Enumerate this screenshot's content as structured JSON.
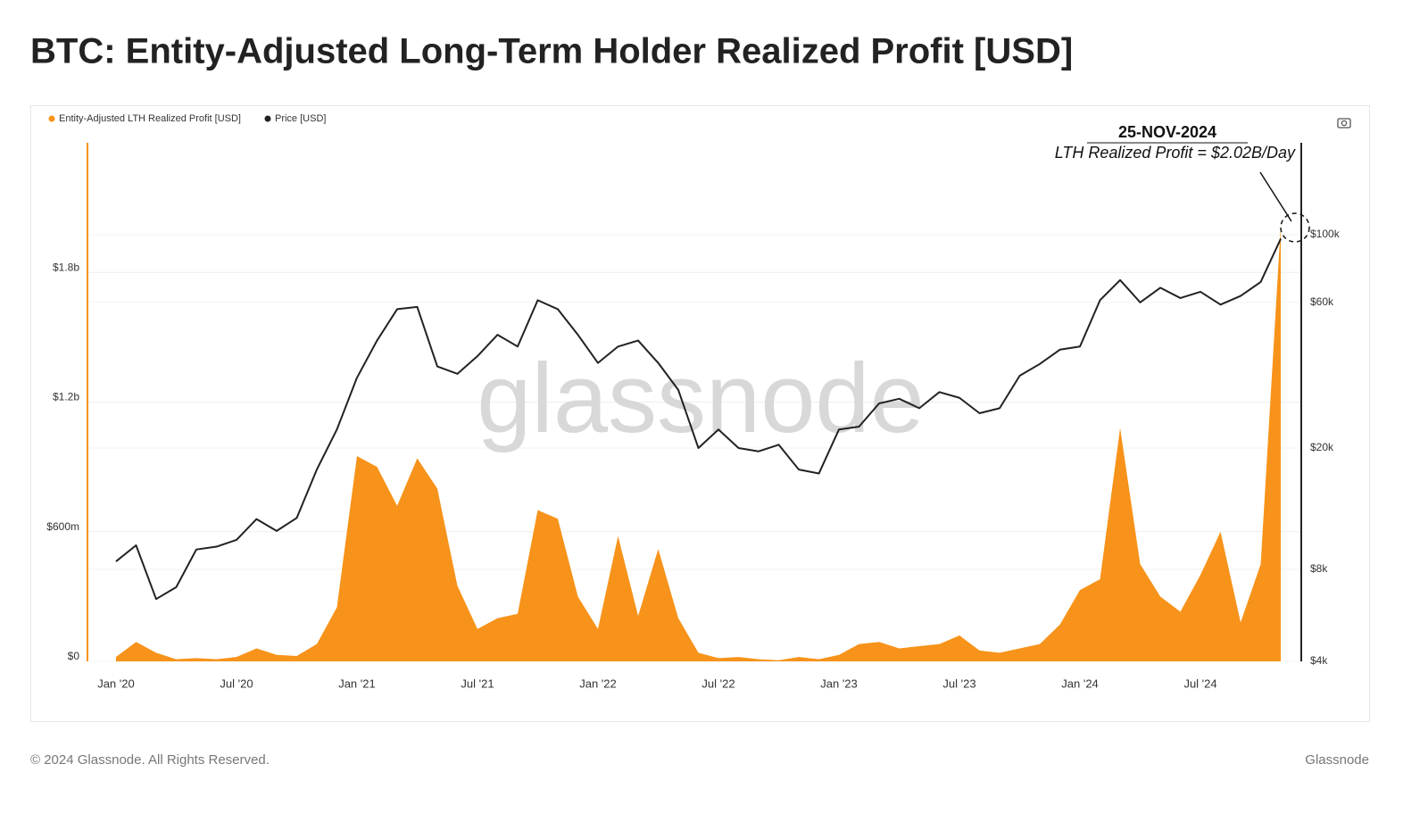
{
  "chart_data": {
    "type": "area-line",
    "title": "BTC: Entity-Adjusted Long-Term Holder Realized Profit [USD]",
    "x": [
      "2020-01",
      "2020-02",
      "2020-03",
      "2020-04",
      "2020-05",
      "2020-06",
      "2020-07",
      "2020-08",
      "2020-09",
      "2020-10",
      "2020-11",
      "2020-12",
      "2021-01",
      "2021-02",
      "2021-03",
      "2021-04",
      "2021-05",
      "2021-06",
      "2021-07",
      "2021-08",
      "2021-09",
      "2021-10",
      "2021-11",
      "2021-12",
      "2022-01",
      "2022-02",
      "2022-03",
      "2022-04",
      "2022-05",
      "2022-06",
      "2022-07",
      "2022-08",
      "2022-09",
      "2022-10",
      "2022-11",
      "2022-12",
      "2023-01",
      "2023-02",
      "2023-03",
      "2023-04",
      "2023-05",
      "2023-06",
      "2023-07",
      "2023-08",
      "2023-09",
      "2023-10",
      "2023-11",
      "2023-12",
      "2024-01",
      "2024-02",
      "2024-03",
      "2024-04",
      "2024-05",
      "2024-06",
      "2024-07",
      "2024-08",
      "2024-09",
      "2024-10",
      "2024-11"
    ],
    "series": [
      {
        "name": "Entity-Adjusted LTH Realized Profit [USD]",
        "color": "#f7931a",
        "axis": "y",
        "values": [
          20000000,
          90000000,
          40000000,
          10000000,
          15000000,
          10000000,
          20000000,
          60000000,
          30000000,
          25000000,
          80000000,
          250000000,
          950000000,
          900000000,
          720000000,
          940000000,
          800000000,
          350000000,
          150000000,
          200000000,
          220000000,
          700000000,
          660000000,
          300000000,
          150000000,
          580000000,
          210000000,
          520000000,
          200000000,
          40000000,
          15000000,
          20000000,
          10000000,
          5000000,
          20000000,
          10000000,
          30000000,
          80000000,
          90000000,
          60000000,
          70000000,
          80000000,
          120000000,
          50000000,
          40000000,
          60000000,
          80000000,
          170000000,
          330000000,
          380000000,
          1080000000,
          450000000,
          300000000,
          230000000,
          400000000,
          600000000,
          180000000,
          450000000,
          2020000000
        ]
      },
      {
        "name": "Price [USD]",
        "color": "#222222",
        "axis": "y2",
        "values": [
          8500,
          9600,
          6400,
          7000,
          9300,
          9500,
          10000,
          11700,
          10700,
          11800,
          17000,
          23000,
          34000,
          45000,
          57000,
          58000,
          37000,
          35000,
          40000,
          47000,
          43000,
          61000,
          57000,
          47000,
          38000,
          43000,
          45000,
          38000,
          31000,
          20000,
          23000,
          20000,
          19500,
          20500,
          17000,
          16500,
          23000,
          23500,
          28000,
          29000,
          27000,
          30500,
          29200,
          26000,
          27000,
          34500,
          37700,
          42000,
          43000,
          61000,
          71000,
          60000,
          67000,
          62000,
          65000,
          59000,
          63000,
          70000,
          97000
        ]
      }
    ],
    "ylim": [
      0,
      2400000000
    ],
    "yticks": [
      {
        "value": 0,
        "label": "$0"
      },
      {
        "value": 600000000,
        "label": "$600m"
      },
      {
        "value": 1200000000,
        "label": "$1.2b"
      },
      {
        "value": 1800000000,
        "label": "$1.8b"
      }
    ],
    "y2lim": [
      4000,
      200000
    ],
    "y2log": true,
    "y2ticks": [
      {
        "value": 4000,
        "label": "$4k"
      },
      {
        "value": 8000,
        "label": "$8k"
      },
      {
        "value": 20000,
        "label": "$20k"
      },
      {
        "value": 60000,
        "label": "$60k"
      },
      {
        "value": 100000,
        "label": "$100k"
      }
    ],
    "xticks": [
      {
        "value": "2020-01",
        "label": "Jan '20"
      },
      {
        "value": "2020-07",
        "label": "Jul '20"
      },
      {
        "value": "2021-01",
        "label": "Jan '21"
      },
      {
        "value": "2021-07",
        "label": "Jul '21"
      },
      {
        "value": "2022-01",
        "label": "Jan '22"
      },
      {
        "value": "2022-07",
        "label": "Jul '22"
      },
      {
        "value": "2023-01",
        "label": "Jan '23"
      },
      {
        "value": "2023-07",
        "label": "Jul '23"
      },
      {
        "value": "2024-01",
        "label": "Jan '24"
      },
      {
        "value": "2024-07",
        "label": "Jul '24"
      }
    ],
    "grid": true,
    "annotation": {
      "date": "25-NOV-2024",
      "text": "LTH Realized Profit = $2.02B/Day"
    },
    "watermark": "glassnode"
  },
  "footer": {
    "copyright": "© 2024 Glassnode. All Rights Reserved.",
    "brand": "Glassnode"
  }
}
